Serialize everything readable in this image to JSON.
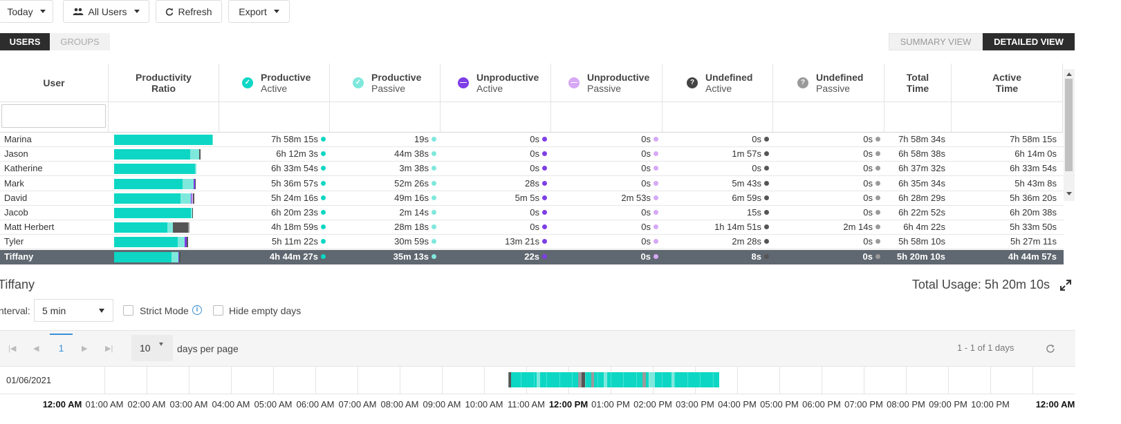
{
  "toolbar": {
    "today": "Today",
    "all_users": "All Users",
    "refresh": "Refresh",
    "export": "Export"
  },
  "tabs": {
    "users": "USERS",
    "groups": "GROUPS"
  },
  "views": {
    "summary": "SUMMARY VIEW",
    "detailed": "DETAILED VIEW"
  },
  "columns": {
    "user": "User",
    "ratio_1": "Productivity",
    "ratio_2": "Ratio",
    "pa_1": "Productive",
    "pa_2": "Active",
    "pp_1": "Productive",
    "pp_2": "Passive",
    "ua_1": "Unproductive",
    "ua_2": "Active",
    "up_1": "Unproductive",
    "up_2": "Passive",
    "da_1": "Undefined",
    "da_2": "Active",
    "dp_1": "Undefined",
    "dp_2": "Passive",
    "tt_1": "Total",
    "tt_2": "Time",
    "at_1": "Active",
    "at_2": "Time"
  },
  "colors": {
    "productive_active": "#0dd7c4",
    "productive_passive": "#7fe8dd",
    "unproductive_active": "#7e3ee6",
    "unproductive_passive": "#d6a8f5",
    "undefined_active": "#555555",
    "undefined_passive": "#9a9a9a"
  },
  "users": [
    {
      "name": "Marina",
      "pa": "7h 58m 15s",
      "pp": "19s",
      "ua": "0s",
      "up": "0s",
      "da": "0s",
      "dp": "0s",
      "total": "7h 58m 34s",
      "active": "7h 58m 15s",
      "ratio": {
        "pa": 0.996,
        "pp": 0.004,
        "ua": 0,
        "up": 0,
        "da": 0,
        "dp": 0
      },
      "fill": 1.0
    },
    {
      "name": "Jason",
      "pa": "6h 12m 3s",
      "pp": "44m 38s",
      "ua": "0s",
      "up": "0s",
      "da": "1m 57s",
      "dp": "0s",
      "total": "6h 58m 38s",
      "active": "6h 14m 0s",
      "ratio": {
        "pa": 0.889,
        "pp": 0.107,
        "ua": 0,
        "up": 0,
        "da": 0.005,
        "dp": 0
      },
      "fill": 0.874
    },
    {
      "name": "Katherine",
      "pa": "6h 33m 54s",
      "pp": "3m 38s",
      "ua": "0s",
      "up": "0s",
      "da": "0s",
      "dp": "0s",
      "total": "6h 37m 32s",
      "active": "6h 33m 54s",
      "ratio": {
        "pa": 0.991,
        "pp": 0.009,
        "ua": 0,
        "up": 0,
        "da": 0,
        "dp": 0
      },
      "fill": 0.83
    },
    {
      "name": "Mark",
      "pa": "5h 36m 57s",
      "pp": "52m 26s",
      "ua": "28s",
      "up": "0s",
      "da": "5m 43s",
      "dp": "0s",
      "total": "6h 35m 34s",
      "active": "5h 43m 8s",
      "ratio": {
        "pa": 0.852,
        "pp": 0.133,
        "ua": 0.001,
        "up": 0,
        "da": 0.014,
        "dp": 0
      },
      "fill": 0.826
    },
    {
      "name": "David",
      "pa": "5h 24m 16s",
      "pp": "49m 16s",
      "ua": "5m 5s",
      "up": "2m 53s",
      "da": "6m 59s",
      "dp": "0s",
      "total": "6h 28m 29s",
      "active": "5h 36m 20s",
      "ratio": {
        "pa": 0.835,
        "pp": 0.127,
        "ua": 0.013,
        "up": 0.007,
        "da": 0.018,
        "dp": 0
      },
      "fill": 0.811
    },
    {
      "name": "Jacob",
      "pa": "6h 20m 23s",
      "pp": "2m 14s",
      "ua": "0s",
      "up": "0s",
      "da": "15s",
      "dp": "0s",
      "total": "6h 22m 52s",
      "active": "6h 20m 38s",
      "ratio": {
        "pa": 0.994,
        "pp": 0.006,
        "ua": 0,
        "up": 0,
        "da": 0.001,
        "dp": 0
      },
      "fill": 0.8
    },
    {
      "name": "Matt Herbert",
      "pa": "4h 18m 59s",
      "pp": "28m 18s",
      "ua": "0s",
      "up": "0s",
      "da": "1h 14m 51s",
      "dp": "2m 14s",
      "total": "6h 4m 22s",
      "active": "5h 33m 50s",
      "ratio": {
        "pa": 0.711,
        "pp": 0.078,
        "ua": 0,
        "up": 0,
        "da": 0.205,
        "dp": 0.006
      },
      "fill": 0.761
    },
    {
      "name": "Tyler",
      "pa": "5h 11m 22s",
      "pp": "30m 59s",
      "ua": "13m 21s",
      "up": "0s",
      "da": "2m 28s",
      "dp": "0s",
      "total": "5h 58m 10s",
      "active": "5h 27m 11s",
      "ratio": {
        "pa": 0.869,
        "pp": 0.087,
        "ua": 0.037,
        "up": 0,
        "da": 0.007,
        "dp": 0
      },
      "fill": 0.748
    },
    {
      "name": "Tiffany",
      "pa": "4h 44m 27s",
      "pp": "35m 13s",
      "ua": "22s",
      "up": "0s",
      "da": "8s",
      "dp": "0s",
      "total": "5h 20m 10s",
      "active": "4h 44m 57s",
      "ratio": {
        "pa": 0.888,
        "pp": 0.11,
        "ua": 0.001,
        "up": 0,
        "da": 0.001,
        "dp": 0
      },
      "fill": 0.669,
      "selected": true
    }
  ],
  "detail": {
    "name": "Tiffany",
    "total_usage": "Total Usage: 5h 20m 10s",
    "interval_label": "Interval:",
    "interval_value": "5 min",
    "strict_mode": "Strict Mode",
    "hide_empty": "Hide empty days",
    "page": "1",
    "per_page": "10",
    "per_page_label": "days per page",
    "range": "1 - 1 of 1 days",
    "date": "01/06/2021"
  },
  "time_labels": [
    "12:00 AM",
    "01:00 AM",
    "02:00 AM",
    "03:00 AM",
    "04:00 AM",
    "05:00 AM",
    "06:00 AM",
    "07:00 AM",
    "08:00 AM",
    "09:00 AM",
    "10:00 AM",
    "11:00 AM",
    "12:00 PM",
    "01:00 PM",
    "02:00 PM",
    "03:00 PM",
    "04:00 PM",
    "05:00 PM",
    "06:00 PM",
    "07:00 PM",
    "08:00 PM",
    "09:00 PM",
    "10:00 PM",
    "12:00 AM"
  ],
  "activity": {
    "start_time": "10:30 AM",
    "end_time": "04:00 PM",
    "slots": [
      "undefined_active",
      "productive_active",
      "productive_active",
      "productive_active",
      "productive_active",
      "productive_active",
      "productive_active",
      "productive_active",
      "productive_active",
      "productive_passive",
      "productive_active",
      "productive_active",
      "productive_active",
      "productive_active",
      "productive_active",
      "productive_active",
      "productive_active",
      "productive_active",
      "productive_active",
      "productive_active",
      "productive_active",
      "productive_active",
      "undefined_passive",
      "undefined_active",
      "productive_active",
      "productive_active",
      "undefined_passive",
      "productive_active",
      "productive_active",
      "productive_active",
      "productive_passive",
      "productive_active",
      "productive_active",
      "productive_active",
      "productive_active",
      "productive_active",
      "productive_active",
      "productive_active",
      "productive_active",
      "productive_active",
      "productive_active",
      "productive_active",
      "undefined_passive",
      "productive_active",
      "productive_passive",
      "productive_passive",
      "productive_active",
      "productive_active",
      "productive_active",
      "productive_active",
      "productive_active",
      "productive_passive",
      "productive_active",
      "productive_active",
      "productive_active",
      "productive_active",
      "productive_active",
      "productive_active",
      "productive_active",
      "productive_active",
      "productive_active",
      "productive_active",
      "productive_active",
      "productive_active",
      "productive_active",
      "productive_active"
    ]
  }
}
